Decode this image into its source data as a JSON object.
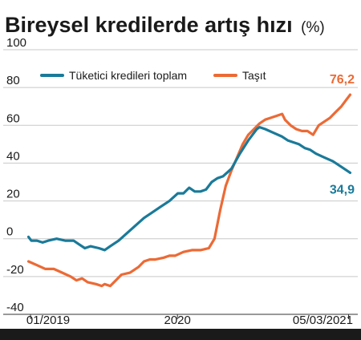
{
  "chart_data": {
    "type": "line",
    "title": "Bireysel kredilerde artış hızı",
    "title_unit": "(%)",
    "xlabel": "",
    "ylabel": "",
    "ylim": [
      -40,
      100
    ],
    "yticks": [
      100,
      80,
      60,
      40,
      20,
      0,
      -20,
      -40
    ],
    "xtick_labels": [
      "01/2019",
      "2020",
      "05/03/2021"
    ],
    "xtick_values": [
      "2019-01",
      "2020-01",
      "2021-03"
    ],
    "grid": true,
    "legend_position": "top-left",
    "series": [
      {
        "name": "Tüketici kredileri toplam",
        "color": "#1a7a99",
        "end_label": "34,9",
        "points": [
          [
            "2018-12-27",
            1
          ],
          [
            "2019-01-03",
            -1
          ],
          [
            "2019-01-10",
            -1
          ],
          [
            "2019-01-17",
            -1
          ],
          [
            "2019-01-31",
            -2
          ],
          [
            "2019-02-14",
            -1
          ],
          [
            "2019-03-07",
            0
          ],
          [
            "2019-03-28",
            -1
          ],
          [
            "2019-04-18",
            -1
          ],
          [
            "2019-05-02",
            -3
          ],
          [
            "2019-05-16",
            -5
          ],
          [
            "2019-05-30",
            -4
          ],
          [
            "2019-06-20",
            -5
          ],
          [
            "2019-07-04",
            -6
          ],
          [
            "2019-07-18",
            -4
          ],
          [
            "2019-08-08",
            -1
          ],
          [
            "2019-08-29",
            3
          ],
          [
            "2019-09-19",
            7
          ],
          [
            "2019-10-10",
            11
          ],
          [
            "2019-10-31",
            14
          ],
          [
            "2019-11-21",
            17
          ],
          [
            "2019-12-12",
            20
          ],
          [
            "2020-01-02",
            24
          ],
          [
            "2020-01-16",
            24
          ],
          [
            "2020-01-30",
            27
          ],
          [
            "2020-02-13",
            25
          ],
          [
            "2020-02-27",
            25
          ],
          [
            "2020-03-12",
            26
          ],
          [
            "2020-03-26",
            30
          ],
          [
            "2020-04-09",
            32
          ],
          [
            "2020-04-23",
            33
          ],
          [
            "2020-05-14",
            37
          ],
          [
            "2020-06-04",
            45
          ],
          [
            "2020-06-25",
            52
          ],
          [
            "2020-07-16",
            58
          ],
          [
            "2020-07-23",
            59
          ],
          [
            "2020-08-06",
            58
          ],
          [
            "2020-08-27",
            56
          ],
          [
            "2020-09-17",
            54
          ],
          [
            "2020-10-01",
            52
          ],
          [
            "2020-10-15",
            51
          ],
          [
            "2020-10-29",
            50
          ],
          [
            "2020-11-12",
            48
          ],
          [
            "2020-11-26",
            47
          ],
          [
            "2020-12-10",
            45
          ],
          [
            "2020-12-31",
            43
          ],
          [
            "2021-01-21",
            41
          ],
          [
            "2021-02-11",
            38
          ],
          [
            "2021-03-05",
            34.9
          ]
        ]
      },
      {
        "name": "Taşıt",
        "color": "#ec6a35",
        "end_label": "76,2",
        "points": [
          [
            "2018-12-27",
            -12
          ],
          [
            "2019-01-17",
            -14
          ],
          [
            "2019-02-07",
            -16
          ],
          [
            "2019-02-28",
            -16
          ],
          [
            "2019-03-21",
            -18
          ],
          [
            "2019-04-11",
            -20
          ],
          [
            "2019-04-25",
            -22
          ],
          [
            "2019-05-09",
            -21
          ],
          [
            "2019-05-23",
            -23
          ],
          [
            "2019-06-13",
            -24
          ],
          [
            "2019-06-27",
            -25
          ],
          [
            "2019-07-04",
            -24
          ],
          [
            "2019-07-18",
            -25
          ],
          [
            "2019-08-01",
            -22
          ],
          [
            "2019-08-15",
            -19
          ],
          [
            "2019-09-05",
            -18
          ],
          [
            "2019-09-26",
            -15
          ],
          [
            "2019-10-10",
            -12
          ],
          [
            "2019-10-24",
            -11
          ],
          [
            "2019-11-07",
            -11
          ],
          [
            "2019-11-28",
            -10
          ],
          [
            "2019-12-12",
            -9
          ],
          [
            "2019-12-26",
            -9
          ],
          [
            "2020-01-16",
            -7
          ],
          [
            "2020-02-06",
            -6
          ],
          [
            "2020-02-27",
            -6
          ],
          [
            "2020-03-19",
            -5
          ],
          [
            "2020-04-02",
            0
          ],
          [
            "2020-04-16",
            15
          ],
          [
            "2020-04-30",
            28
          ],
          [
            "2020-05-14",
            36
          ],
          [
            "2020-05-28",
            43
          ],
          [
            "2020-06-11",
            50
          ],
          [
            "2020-06-25",
            55
          ],
          [
            "2020-07-09",
            58
          ],
          [
            "2020-07-23",
            61
          ],
          [
            "2020-08-06",
            63
          ],
          [
            "2020-08-20",
            64
          ],
          [
            "2020-09-03",
            65
          ],
          [
            "2020-09-17",
            66
          ],
          [
            "2020-09-24",
            63
          ],
          [
            "2020-10-08",
            60
          ],
          [
            "2020-10-22",
            58
          ],
          [
            "2020-11-05",
            57
          ],
          [
            "2020-11-19",
            57
          ],
          [
            "2020-12-03",
            55
          ],
          [
            "2020-12-17",
            60
          ],
          [
            "2020-12-31",
            62
          ],
          [
            "2021-01-14",
            64
          ],
          [
            "2021-01-28",
            67
          ],
          [
            "2021-02-11",
            70
          ],
          [
            "2021-02-25",
            74
          ],
          [
            "2021-03-05",
            76.2
          ]
        ]
      }
    ]
  }
}
